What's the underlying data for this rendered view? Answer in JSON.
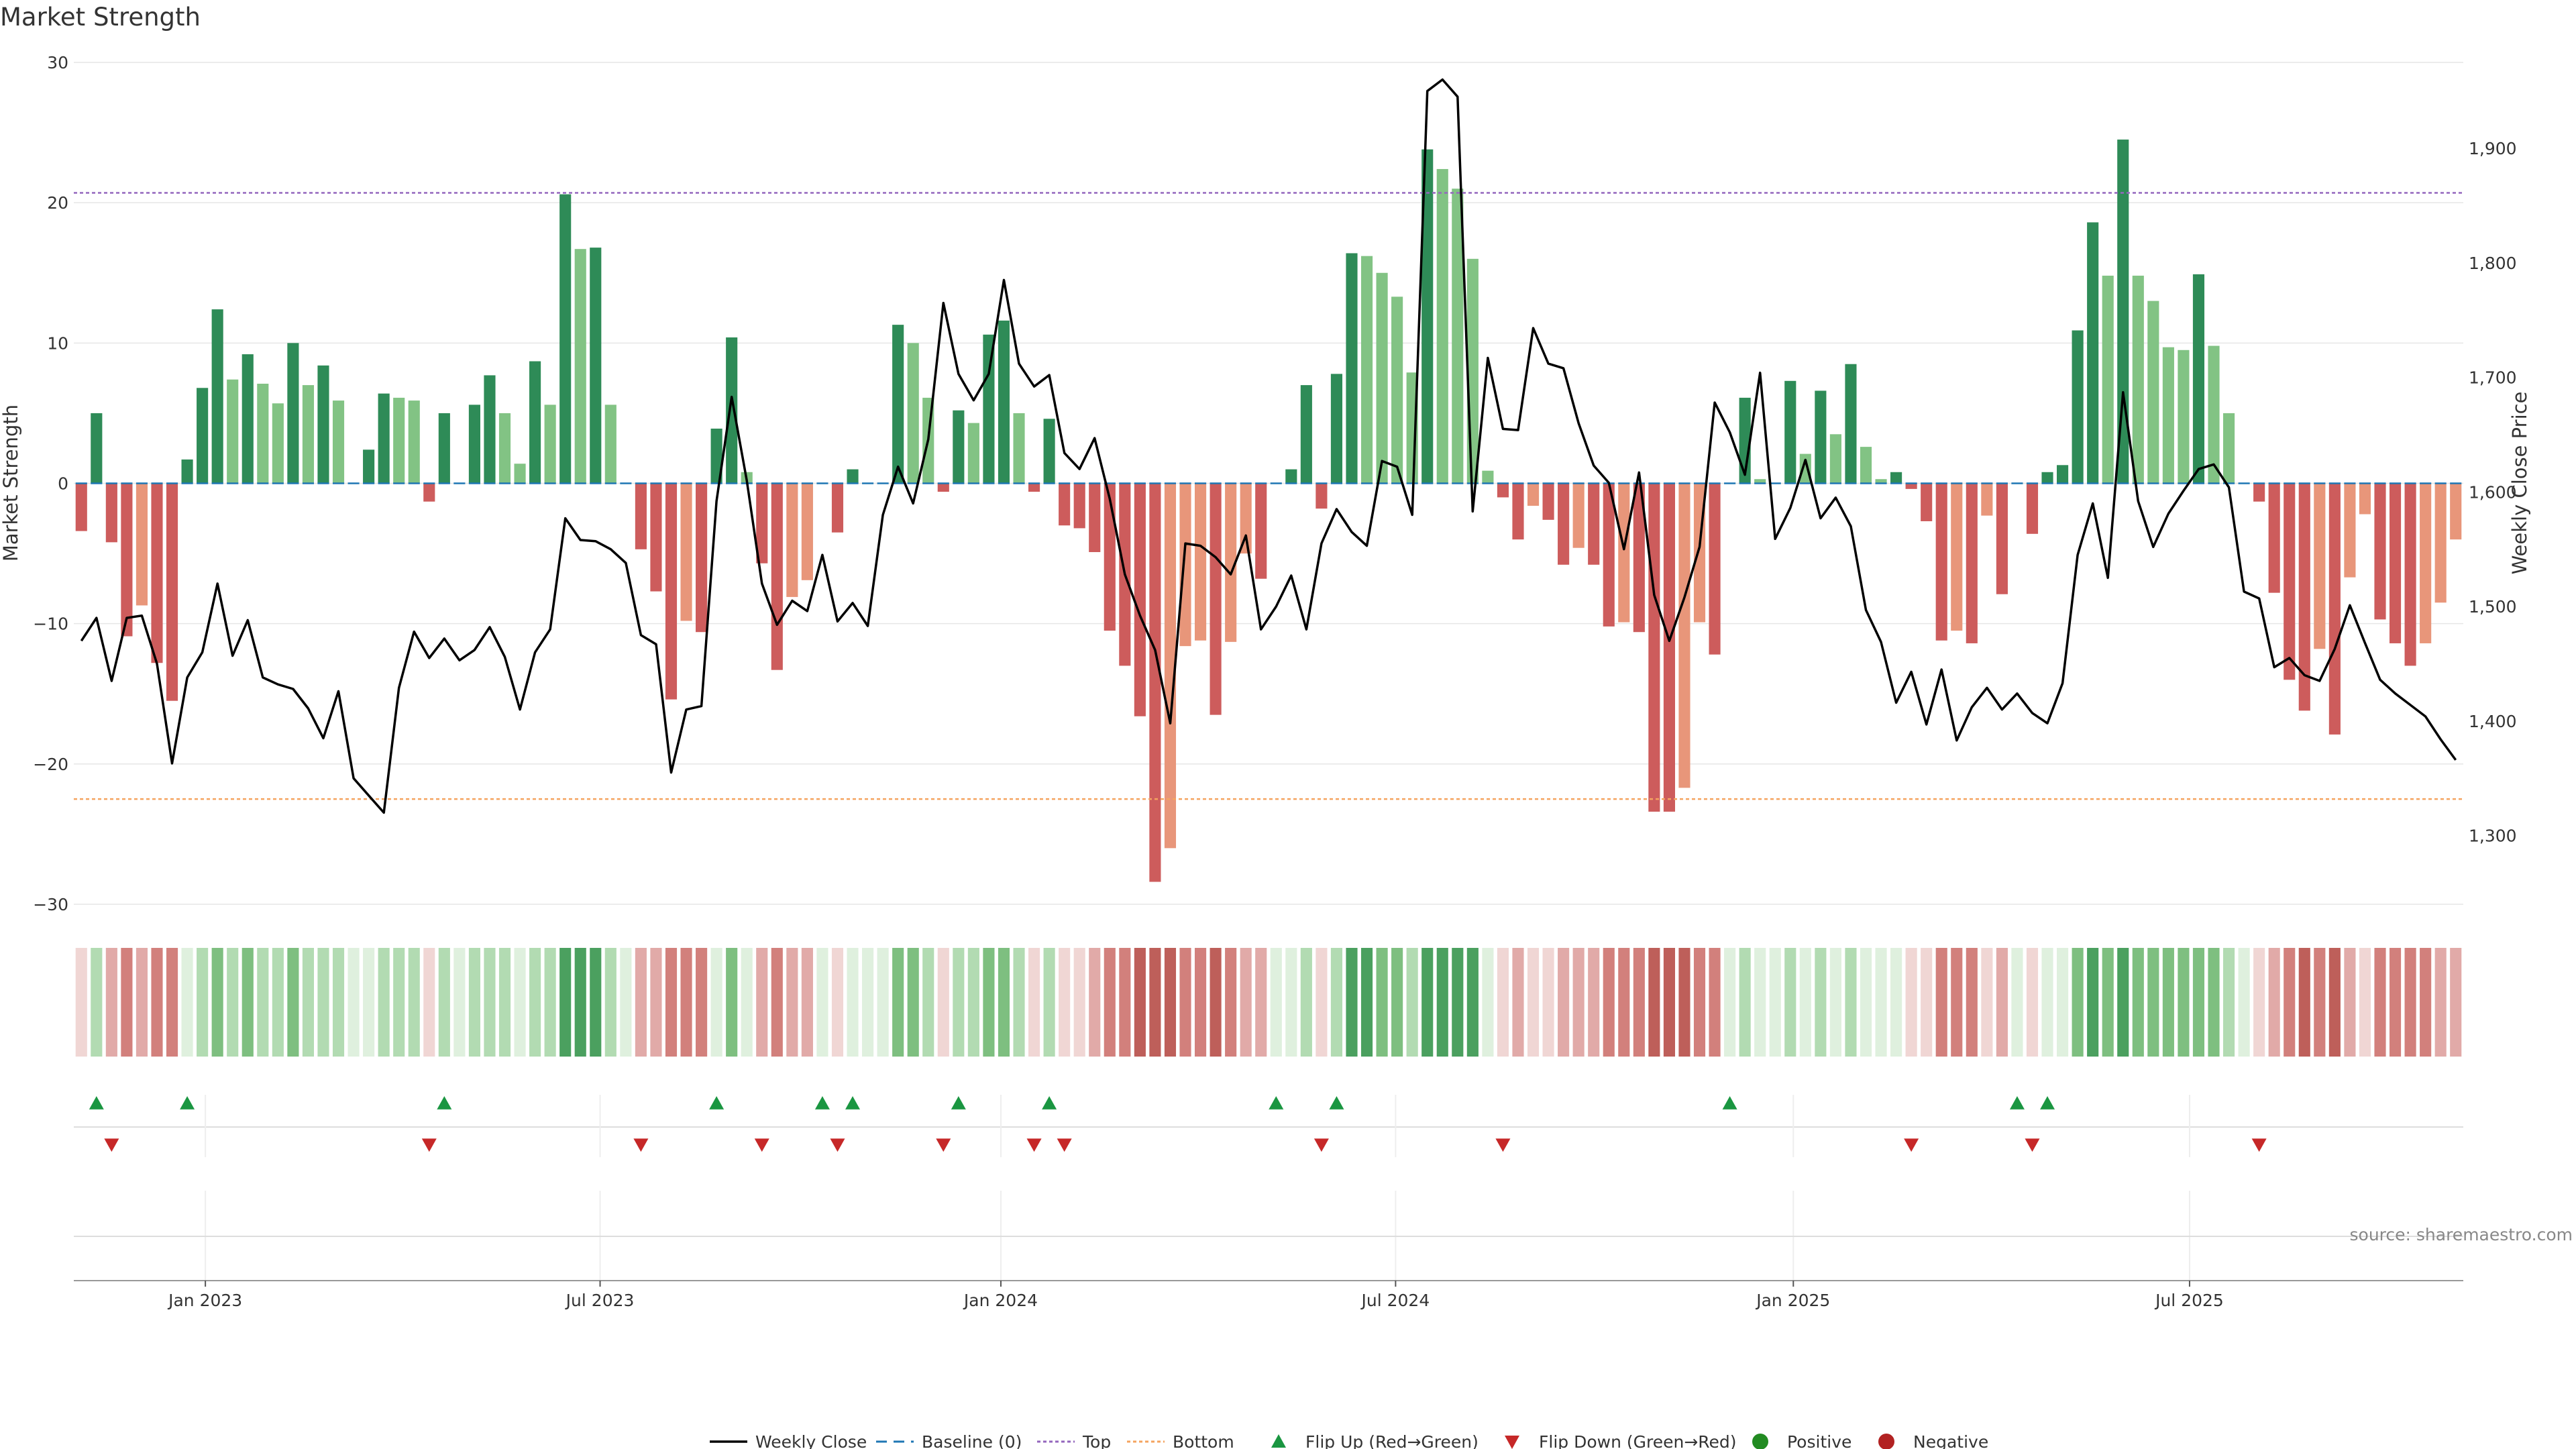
{
  "title": "Market Strength",
  "source_note": "source: sharemaestro.com",
  "colors": {
    "pos_strong": "#2e8b57",
    "pos_light": "#82c384",
    "neg_strong": "#cd5c5c",
    "neg_light": "#e8967a",
    "line": "#000000",
    "top_line": "#9467bd",
    "bottom_line": "#f4a460",
    "baseline": "#1f77b4",
    "flip_up": "#1a9641",
    "flip_down": "#c62828",
    "positive_dot": "#228b22",
    "negative_dot": "#b22222",
    "grid": "#e6e6e6"
  },
  "legend": [
    {
      "key": "weekly_close",
      "label": "Weekly Close"
    },
    {
      "key": "baseline",
      "label": "Baseline (0)"
    },
    {
      "key": "top",
      "label": "Top"
    },
    {
      "key": "bottom",
      "label": "Bottom"
    },
    {
      "key": "flip_up",
      "label": "Flip Up (Red→Green)"
    },
    {
      "key": "flip_down",
      "label": "Flip Down (Green→Red)"
    },
    {
      "key": "positive",
      "label": "Positive"
    },
    {
      "key": "negative",
      "label": "Negative"
    }
  ],
  "chart_data": {
    "type": "bar",
    "title": "Market Strength",
    "ylabel": "Market Strength",
    "y2label": "Weekly Close Price",
    "ylim": [
      -30,
      30
    ],
    "y2lim": [
      1240,
      1975
    ],
    "yticks": [
      30,
      20,
      10,
      0,
      -10,
      -20,
      -30
    ],
    "yticks_labels": [
      "30",
      "20",
      "10",
      "0",
      "−10",
      "−20",
      "−30"
    ],
    "y2ticks": [
      1300,
      1400,
      1500,
      1600,
      1700,
      1800,
      1900
    ],
    "y2ticks_labels": [
      "1,300",
      "1,400",
      "1,500",
      "1,600",
      "1,700",
      "1,800",
      "1,900"
    ],
    "top_threshold": 20.7,
    "bottom_threshold": -22.5,
    "baseline": 0,
    "xticks_index": [
      8.2,
      34.3,
      60.8,
      86.9,
      113.2,
      139.4
    ],
    "xticks_labels": [
      "Jan 2023",
      "Jul 2023",
      "Jan 2024",
      "Jul 2024",
      "Jan 2025",
      "Jul 2025"
    ],
    "strength": [
      -3.4,
      5,
      -4.2,
      -10.9,
      -8.7,
      -12.8,
      -15.5,
      1.7,
      6.8,
      12.4,
      7.4,
      9.2,
      7.1,
      5.7,
      10,
      7,
      8.4,
      5.9,
      0,
      2.4,
      6.4,
      6.1,
      5.9,
      -1.3,
      5,
      0,
      5.6,
      7.7,
      5,
      1.4,
      8.7,
      5.6,
      20.6,
      16.7,
      16.8,
      5.6,
      0,
      -4.7,
      -7.7,
      -15.4,
      -9.8,
      -10.6,
      3.9,
      10.4,
      0.8,
      -5.7,
      -13.3,
      -8.1,
      -6.9,
      0,
      -3.5,
      1,
      0,
      0,
      11.3,
      10,
      6.1,
      -0.6,
      5.2,
      4.3,
      10.6,
      11.6,
      5,
      -0.6,
      4.6,
      -3,
      -3.2,
      -4.9,
      -10.5,
      -13,
      -16.6,
      -28.4,
      -26,
      -11.6,
      -11.2,
      -16.5,
      -11.3,
      -5,
      -6.8,
      0,
      1,
      7,
      -1.8,
      7.8,
      16.4,
      16.2,
      15,
      13.3,
      7.9,
      23.8,
      22.4,
      21,
      16,
      0.9,
      -1,
      -4,
      -1.6,
      -2.6,
      -5.8,
      -4.6,
      -5.8,
      -10.2,
      -9.9,
      -10.6,
      -23.4,
      -23.4,
      -21.7,
      -9.9,
      -12.2,
      0,
      6.1,
      0.3,
      0,
      7.3,
      2.1,
      6.6,
      3.5,
      8.5,
      2.6,
      0.3,
      0.8,
      -0.4,
      -2.7,
      -11.2,
      -10.5,
      -11.4,
      -2.3,
      -7.9,
      0,
      -3.6,
      0.8,
      1.3,
      10.9,
      18.6,
      14.8,
      24.5,
      14.8,
      13,
      9.7,
      9.5,
      14.9,
      9.8,
      5,
      0,
      -1.3,
      -7.8,
      -14,
      -16.2,
      -11.8,
      -17.9,
      -6.7,
      -2.2,
      -9.7,
      -11.4,
      -13,
      -11.4,
      -8.5,
      -4
    ],
    "weekly_close": [
      1470,
      1490,
      1435,
      1490,
      1492,
      1450,
      1363,
      1438,
      1460,
      1520,
      1457,
      1488,
      1438,
      1432,
      1428,
      1411,
      1385,
      1426,
      1350,
      1335,
      1320,
      1429,
      1478,
      1455,
      1472,
      1453,
      1462,
      1482,
      1456,
      1410,
      1460,
      1480,
      1577,
      1558,
      1557,
      1550,
      1538,
      1475,
      1467,
      1355,
      1410,
      1413,
      1592,
      1683,
      1610,
      1520,
      1484,
      1505,
      1496,
      1545,
      1487,
      1503,
      1483,
      1580,
      1622,
      1590,
      1646,
      1765,
      1703,
      1680,
      1703,
      1785,
      1712,
      1692,
      1702,
      1634,
      1620,
      1647,
      1594,
      1528,
      1492,
      1462,
      1398,
      1555,
      1553,
      1543,
      1528,
      1562,
      1480,
      1500,
      1527,
      1480,
      1555,
      1585,
      1565,
      1553,
      1627,
      1622,
      1580,
      1950,
      1960,
      1945,
      1583,
      1717,
      1655,
      1654,
      1743,
      1712,
      1708,
      1660,
      1623,
      1608,
      1550,
      1617,
      1510,
      1470,
      1508,
      1552,
      1678,
      1652,
      1615,
      1704,
      1559,
      1586,
      1628,
      1577,
      1595,
      1570,
      1497,
      1469,
      1416,
      1443,
      1397,
      1445,
      1383,
      1412,
      1429,
      1410,
      1424,
      1407,
      1398,
      1433,
      1545,
      1590,
      1525,
      1687,
      1592,
      1552,
      1581,
      1601,
      1620,
      1624,
      1604,
      1513,
      1507,
      1447,
      1455,
      1440,
      1435,
      1463,
      1501,
      1468,
      1436,
      1424,
      1414,
      1404,
      1384,
      1366
    ]
  }
}
